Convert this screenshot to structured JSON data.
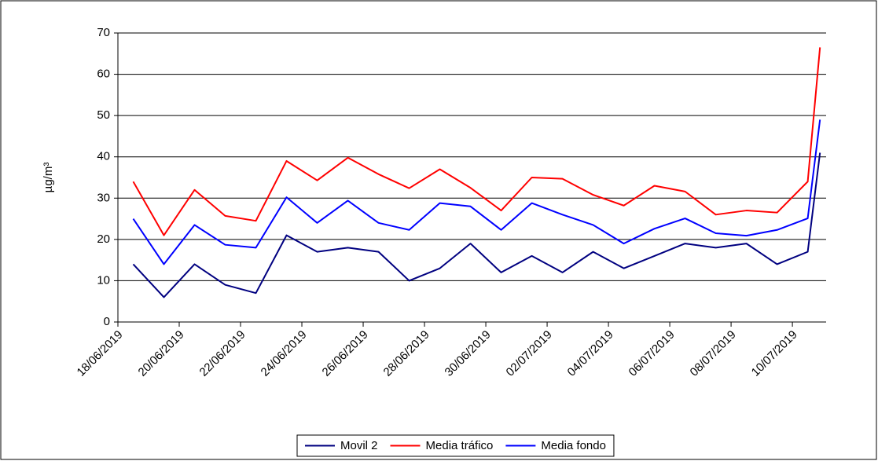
{
  "chart_data": {
    "type": "line",
    "y_label": "µg/m³",
    "x": [
      0.5,
      1.5,
      2.5,
      3.5,
      4.5,
      5.5,
      6.5,
      7.5,
      8.5,
      9.5,
      10.5,
      11.5,
      12.5,
      13.5,
      14.5,
      15.5,
      16.5,
      17.5,
      18.5,
      19.5,
      20.5,
      21.5,
      22.5,
      22.9
    ],
    "xlim": [
      0,
      23.1
    ],
    "xticks": [
      {
        "value": 0,
        "label": "18/06/2019"
      },
      {
        "value": 2,
        "label": "20/06/2019"
      },
      {
        "value": 4,
        "label": "22/06/2019"
      },
      {
        "value": 6,
        "label": "24/06/2019"
      },
      {
        "value": 8,
        "label": "26/06/2019"
      },
      {
        "value": 10,
        "label": "28/06/2019"
      },
      {
        "value": 12,
        "label": "30/06/2019"
      },
      {
        "value": 14,
        "label": "02/07/2019"
      },
      {
        "value": 16,
        "label": "04/07/2019"
      },
      {
        "value": 18,
        "label": "06/07/2019"
      },
      {
        "value": 20,
        "label": "08/07/2019"
      },
      {
        "value": 22,
        "label": "10/07/2019"
      }
    ],
    "ylim": [
      0,
      70
    ],
    "yticks": [
      0,
      10,
      20,
      30,
      40,
      50,
      60,
      70
    ],
    "grid": true,
    "legend": "bottom",
    "series": [
      {
        "name": "Movil 2",
        "color": "#000080",
        "values": [
          14,
          6,
          14,
          9,
          7,
          21,
          17,
          18,
          17,
          10,
          13,
          19,
          12,
          16,
          12,
          17,
          13,
          16,
          19,
          18,
          19,
          14,
          17,
          41
        ]
      },
      {
        "name": "Media tráfico",
        "color": "#ff0000",
        "values": [
          34,
          21,
          32,
          25.7,
          24.5,
          39,
          34.3,
          39.8,
          35.8,
          32.4,
          37,
          32.5,
          27,
          35,
          34.7,
          30.8,
          28.2,
          33,
          31.6,
          26,
          27,
          26.5,
          34,
          66.5
        ]
      },
      {
        "name": "Media fondo",
        "color": "#0000ff",
        "values": [
          25,
          14,
          23.5,
          18.7,
          18,
          30.2,
          24,
          29.4,
          24,
          22.3,
          28.8,
          28,
          22.3,
          28.8,
          26,
          23.5,
          19,
          22.6,
          25.1,
          21.5,
          20.9,
          22.3,
          25.1,
          49
        ]
      }
    ]
  }
}
